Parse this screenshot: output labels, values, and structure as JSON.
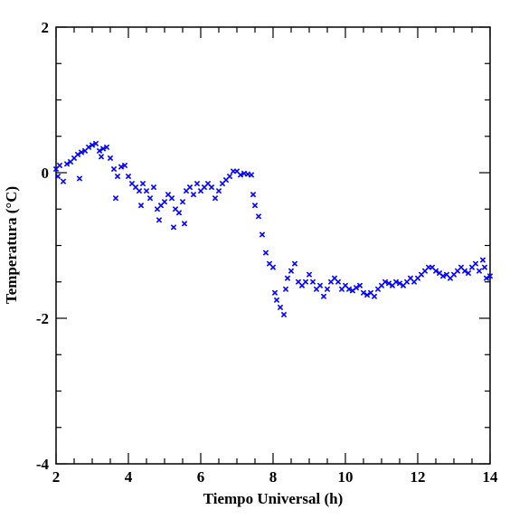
{
  "chart_data": {
    "type": "scatter",
    "xlabel": "Tiempo Universal (h)",
    "ylabel": "Temperatura (°C)",
    "xlim": [
      2,
      14
    ],
    "ylim": [
      -4,
      2
    ],
    "xticks": [
      2,
      4,
      6,
      8,
      10,
      12,
      14
    ],
    "yticks": [
      -4,
      -2,
      0,
      2
    ],
    "xminorticks": [
      2.5,
      3,
      3.5,
      4.5,
      5,
      5.5,
      6.5,
      7,
      7.5,
      8.5,
      9,
      9.5,
      10.5,
      11,
      11.5,
      12.5,
      13,
      13.5
    ],
    "yminorticks": [
      -3.5,
      -3,
      -2.5,
      -1.5,
      -1,
      -0.5,
      0.5,
      1,
      1.5
    ],
    "color": "#0000ff",
    "marker": "x",
    "x": [
      2.0,
      2.05,
      2.1,
      2.2,
      2.3,
      2.4,
      2.5,
      2.6,
      2.65,
      2.7,
      2.8,
      2.9,
      3.0,
      3.1,
      3.2,
      3.25,
      3.3,
      3.4,
      3.5,
      3.6,
      3.65,
      3.7,
      3.8,
      3.9,
      4.0,
      4.1,
      4.2,
      4.3,
      4.35,
      4.4,
      4.5,
      4.6,
      4.7,
      4.8,
      4.85,
      4.9,
      5.0,
      5.1,
      5.2,
      5.25,
      5.3,
      5.4,
      5.5,
      5.55,
      5.6,
      5.7,
      5.8,
      5.9,
      6.0,
      6.1,
      6.2,
      6.3,
      6.4,
      6.5,
      6.6,
      6.7,
      6.8,
      6.9,
      7.0,
      7.1,
      7.2,
      7.3,
      7.4,
      7.45,
      7.5,
      7.6,
      7.7,
      7.8,
      7.9,
      8.0,
      8.05,
      8.1,
      8.2,
      8.3,
      8.35,
      8.4,
      8.5,
      8.6,
      8.7,
      8.8,
      8.9,
      9.0,
      9.1,
      9.2,
      9.3,
      9.4,
      9.5,
      9.6,
      9.7,
      9.8,
      9.9,
      10.0,
      10.1,
      10.2,
      10.3,
      10.4,
      10.5,
      10.6,
      10.7,
      10.8,
      10.9,
      11.0,
      11.1,
      11.2,
      11.3,
      11.4,
      11.5,
      11.6,
      11.7,
      11.8,
      11.9,
      12.0,
      12.1,
      12.2,
      12.3,
      12.4,
      12.5,
      12.6,
      12.7,
      12.8,
      12.9,
      13.0,
      13.1,
      13.2,
      13.3,
      13.4,
      13.5,
      13.6,
      13.7,
      13.8,
      13.85,
      13.9,
      14.0
    ],
    "values": [
      0.05,
      -0.05,
      0.1,
      -0.12,
      0.12,
      0.15,
      0.2,
      0.25,
      -0.08,
      0.28,
      0.3,
      0.35,
      0.38,
      0.4,
      0.3,
      0.22,
      0.33,
      0.35,
      0.2,
      0.05,
      -0.35,
      -0.05,
      0.08,
      0.1,
      -0.05,
      -0.15,
      -0.2,
      -0.25,
      -0.45,
      -0.15,
      -0.25,
      -0.35,
      -0.2,
      -0.5,
      -0.65,
      -0.45,
      -0.4,
      -0.3,
      -0.35,
      -0.75,
      -0.5,
      -0.55,
      -0.4,
      -0.7,
      -0.25,
      -0.2,
      -0.3,
      -0.15,
      -0.25,
      -0.2,
      -0.15,
      -0.2,
      -0.35,
      -0.25,
      -0.15,
      -0.1,
      -0.05,
      0.02,
      0.02,
      -0.03,
      -0.01,
      -0.02,
      -0.03,
      -0.3,
      -0.45,
      -0.6,
      -0.85,
      -1.1,
      -1.25,
      -1.3,
      -1.65,
      -1.75,
      -1.85,
      -1.95,
      -1.6,
      -1.45,
      -1.35,
      -1.25,
      -1.5,
      -1.55,
      -1.5,
      -1.4,
      -1.5,
      -1.6,
      -1.55,
      -1.7,
      -1.6,
      -1.5,
      -1.45,
      -1.5,
      -1.6,
      -1.55,
      -1.6,
      -1.62,
      -1.58,
      -1.55,
      -1.65,
      -1.68,
      -1.65,
      -1.7,
      -1.6,
      -1.55,
      -1.5,
      -1.52,
      -1.55,
      -1.5,
      -1.52,
      -1.55,
      -1.5,
      -1.45,
      -1.5,
      -1.45,
      -1.4,
      -1.35,
      -1.3,
      -1.3,
      -1.35,
      -1.38,
      -1.42,
      -1.4,
      -1.45,
      -1.4,
      -1.35,
      -1.3,
      -1.35,
      -1.38,
      -1.3,
      -1.25,
      -1.35,
      -1.2,
      -1.3,
      -1.45,
      -1.42
    ]
  }
}
